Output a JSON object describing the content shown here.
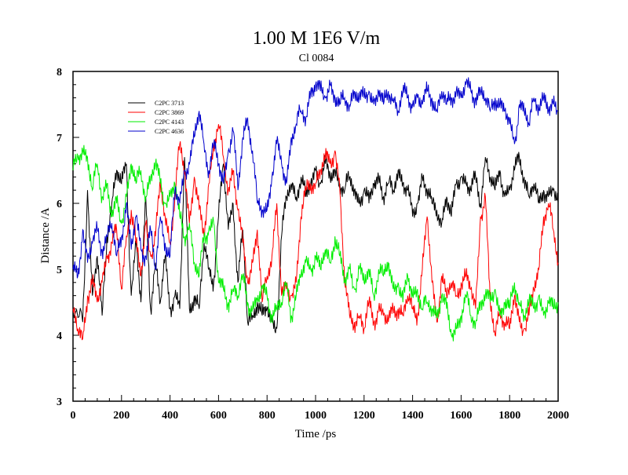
{
  "chart_data": {
    "type": "line",
    "title": "1.00 M 1E6 V/m",
    "subtitle": "Cl 0084",
    "xlabel": "Time /ps",
    "ylabel": "Distance /A",
    "xlim": [
      0,
      2000
    ],
    "ylim": [
      3,
      8
    ],
    "xticks": [
      0,
      200,
      400,
      600,
      800,
      1000,
      1200,
      1400,
      1600,
      1800,
      2000
    ],
    "xtick_labels": [
      "0",
      "200",
      "400",
      "600",
      "800",
      "1000",
      "1200",
      "1400",
      "1600",
      "1800",
      "2000"
    ],
    "yticks": [
      3,
      4,
      5,
      6,
      7,
      8
    ],
    "ytick_labels": [
      "3",
      "4",
      "5",
      "6",
      "7",
      "8"
    ],
    "grid": false,
    "legend_position": "top-left",
    "series": [
      {
        "name": "C2PC 3713",
        "color": "#000000",
        "x": [
          0,
          40,
          60,
          80,
          100,
          120,
          140,
          160,
          180,
          200,
          220,
          240,
          260,
          280,
          300,
          320,
          340,
          360,
          380,
          400,
          420,
          440,
          460,
          480,
          500,
          520,
          540,
          560,
          580,
          600,
          620,
          640,
          660,
          680,
          700,
          720,
          740,
          760,
          780,
          800,
          820,
          840,
          860,
          880,
          900,
          920,
          940,
          960,
          980,
          1000,
          1020,
          1040,
          1060,
          1080,
          1100,
          1120,
          1140,
          1160,
          1180,
          1200,
          1220,
          1240,
          1260,
          1280,
          1300,
          1320,
          1340,
          1360,
          1380,
          1400,
          1420,
          1440,
          1460,
          1480,
          1500,
          1520,
          1540,
          1560,
          1580,
          1600,
          1620,
          1640,
          1660,
          1680,
          1700,
          1720,
          1740,
          1760,
          1780,
          1800,
          1820,
          1840,
          1860,
          1880,
          1900,
          1920,
          1940,
          1960,
          1980,
          2000
        ],
        "y": [
          4.4,
          4.2,
          6.2,
          4.6,
          5.2,
          4.3,
          5.5,
          6.0,
          6.5,
          6.3,
          6.6,
          4.6,
          5.4,
          4.5,
          6.1,
          4.4,
          5.1,
          4.5,
          5.2,
          4.4,
          4.6,
          4.4,
          6.7,
          4.4,
          4.6,
          4.4,
          5.4,
          5.0,
          4.8,
          5.8,
          6.6,
          5.6,
          6.0,
          4.8,
          5.6,
          4.2,
          4.3,
          4.5,
          4.3,
          4.4,
          4.2,
          4.1,
          5.5,
          6.1,
          6.3,
          6.1,
          6.4,
          6.1,
          6.3,
          6.5,
          6.3,
          6.6,
          6.4,
          6.5,
          6.3,
          6.2,
          6.4,
          6.2,
          6.0,
          6.2,
          6.0,
          6.3,
          6.4,
          6.1,
          6.3,
          6.2,
          6.5,
          6.3,
          6.2,
          5.8,
          6.0,
          6.4,
          6.2,
          6.0,
          5.9,
          5.7,
          6.1,
          5.8,
          6.3,
          6.4,
          6.3,
          6.2,
          6.4,
          6.0,
          6.7,
          6.4,
          6.2,
          6.5,
          6.1,
          6.2,
          6.5,
          6.7,
          6.4,
          6.1,
          6.3,
          6.0,
          6.2,
          6.1,
          6.2,
          6.0
        ]
      },
      {
        "name": "C2PC 3869",
        "color": "#ff0000",
        "x": [
          0,
          20,
          40,
          60,
          80,
          100,
          120,
          140,
          160,
          180,
          200,
          220,
          240,
          260,
          280,
          300,
          320,
          340,
          360,
          380,
          400,
          420,
          440,
          460,
          480,
          500,
          520,
          540,
          560,
          580,
          600,
          620,
          640,
          660,
          680,
          700,
          720,
          740,
          760,
          780,
          800,
          820,
          840,
          860,
          880,
          900,
          920,
          940,
          960,
          980,
          1000,
          1020,
          1040,
          1060,
          1080,
          1100,
          1120,
          1140,
          1160,
          1180,
          1200,
          1220,
          1240,
          1260,
          1280,
          1300,
          1320,
          1340,
          1360,
          1380,
          1400,
          1420,
          1440,
          1460,
          1480,
          1500,
          1520,
          1540,
          1560,
          1580,
          1600,
          1620,
          1640,
          1660,
          1680,
          1700,
          1720,
          1740,
          1760,
          1780,
          1800,
          1820,
          1840,
          1860,
          1880,
          1900,
          1920,
          1940,
          1960,
          1980,
          2000
        ],
        "y": [
          4.4,
          4.1,
          3.95,
          4.6,
          4.8,
          4.5,
          4.8,
          5.2,
          5.4,
          5.6,
          4.7,
          5.5,
          5.9,
          5.4,
          4.9,
          5.7,
          5.2,
          5.5,
          6.3,
          5.8,
          5.4,
          6.1,
          6.9,
          6.5,
          5.7,
          6.4,
          5.9,
          5.5,
          6.3,
          6.9,
          7.2,
          6.7,
          6.2,
          6.5,
          5.9,
          5.4,
          4.8,
          5.1,
          5.6,
          4.5,
          4.9,
          5.2,
          6.0,
          4.6,
          4.7,
          4.6,
          4.8,
          5.8,
          6.2,
          6.3,
          6.3,
          6.5,
          6.7,
          6.6,
          6.8,
          6.2,
          4.8,
          4.3,
          4.2,
          4.3,
          4.1,
          4.5,
          4.2,
          4.4,
          4.3,
          4.2,
          4.4,
          4.4,
          4.3,
          4.6,
          4.4,
          4.3,
          5.0,
          5.8,
          4.8,
          4.2,
          4.9,
          4.6,
          4.8,
          4.6,
          4.8,
          4.9,
          4.7,
          4.4,
          5.8,
          6.1,
          4.5,
          4.0,
          4.4,
          4.2,
          4.1,
          4.6,
          4.2,
          4.1,
          4.3,
          4.7,
          5.0,
          5.8,
          6.0,
          5.6,
          5.1
        ]
      },
      {
        "name": "C2PC 4143",
        "color": "#00ee00",
        "x": [
          0,
          20,
          40,
          60,
          80,
          100,
          120,
          140,
          160,
          180,
          200,
          220,
          240,
          260,
          280,
          300,
          320,
          340,
          360,
          380,
          400,
          420,
          440,
          460,
          480,
          500,
          520,
          540,
          560,
          580,
          600,
          620,
          640,
          660,
          680,
          700,
          720,
          740,
          760,
          780,
          800,
          820,
          840,
          860,
          880,
          900,
          920,
          940,
          960,
          980,
          1000,
          1020,
          1040,
          1060,
          1080,
          1100,
          1120,
          1140,
          1160,
          1180,
          1200,
          1220,
          1240,
          1260,
          1280,
          1300,
          1320,
          1340,
          1360,
          1380,
          1400,
          1420,
          1440,
          1460,
          1480,
          1500,
          1520,
          1540,
          1560,
          1580,
          1600,
          1620,
          1640,
          1660,
          1680,
          1700,
          1720,
          1740,
          1760,
          1780,
          1800,
          1820,
          1840,
          1860,
          1880,
          1900,
          1920,
          1940,
          1960,
          1980,
          2000
        ],
        "y": [
          6.5,
          6.7,
          6.8,
          6.7,
          6.2,
          6.6,
          6.1,
          6.3,
          5.8,
          6.0,
          5.7,
          6.1,
          6.6,
          6.3,
          6.5,
          6.1,
          6.4,
          6.6,
          6.3,
          6.0,
          6.1,
          6.3,
          5.8,
          5.5,
          5.7,
          5.1,
          4.9,
          5.5,
          5.6,
          5.7,
          4.8,
          4.7,
          4.5,
          4.7,
          4.6,
          4.9,
          4.5,
          4.4,
          4.5,
          4.7,
          4.6,
          4.3,
          4.4,
          4.5,
          4.8,
          4.3,
          4.6,
          4.9,
          5.1,
          5.0,
          5.2,
          5.0,
          5.3,
          5.1,
          5.5,
          5.2,
          4.8,
          5.0,
          4.7,
          5.0,
          4.8,
          5.0,
          4.6,
          5.0,
          4.9,
          5.1,
          4.7,
          4.8,
          4.5,
          4.9,
          4.6,
          4.7,
          4.4,
          4.5,
          4.4,
          4.3,
          4.6,
          4.4,
          4.0,
          4.1,
          4.3,
          4.6,
          4.3,
          4.2,
          4.5,
          4.6,
          4.5,
          4.7,
          4.3,
          4.5,
          4.4,
          4.8,
          4.5,
          4.3,
          4.5,
          4.4,
          4.6,
          4.3,
          4.5,
          4.4,
          4.5
        ]
      },
      {
        "name": "C2PC 4636",
        "color": "#0000cc",
        "x": [
          0,
          20,
          40,
          60,
          80,
          100,
          120,
          140,
          160,
          180,
          200,
          220,
          240,
          260,
          280,
          300,
          320,
          340,
          360,
          380,
          400,
          420,
          440,
          460,
          480,
          500,
          520,
          540,
          560,
          580,
          600,
          620,
          640,
          660,
          680,
          700,
          720,
          740,
          760,
          780,
          800,
          820,
          840,
          860,
          880,
          900,
          920,
          940,
          960,
          980,
          1000,
          1020,
          1040,
          1060,
          1080,
          1100,
          1120,
          1140,
          1160,
          1180,
          1200,
          1220,
          1240,
          1260,
          1280,
          1300,
          1320,
          1340,
          1360,
          1380,
          1400,
          1420,
          1440,
          1460,
          1480,
          1500,
          1520,
          1540,
          1560,
          1580,
          1600,
          1620,
          1640,
          1660,
          1680,
          1700,
          1720,
          1740,
          1760,
          1780,
          1800,
          1820,
          1840,
          1860,
          1880,
          1900,
          1920,
          1940,
          1960,
          1980,
          2000
        ],
        "y": [
          5.0,
          4.9,
          5.6,
          5.1,
          5.4,
          5.6,
          5.3,
          5.5,
          5.7,
          5.2,
          5.5,
          6.0,
          5.3,
          5.8,
          5.3,
          5.2,
          5.6,
          5.0,
          5.8,
          5.4,
          5.2,
          6.2,
          6.0,
          6.5,
          6.6,
          7.0,
          7.4,
          6.9,
          6.5,
          6.9,
          6.6,
          6.3,
          6.8,
          7.1,
          6.2,
          7.0,
          7.3,
          6.8,
          6.0,
          5.9,
          5.9,
          6.4,
          6.9,
          6.6,
          6.3,
          7.0,
          7.2,
          7.4,
          7.3,
          7.7,
          7.8,
          7.7,
          7.6,
          7.8,
          7.6,
          7.5,
          7.6,
          7.5,
          7.7,
          7.6,
          7.6,
          7.7,
          7.5,
          7.7,
          7.5,
          7.7,
          7.6,
          7.4,
          7.7,
          7.6,
          7.5,
          7.6,
          7.5,
          7.7,
          7.6,
          7.4,
          7.7,
          7.5,
          7.6,
          7.7,
          7.6,
          7.8,
          7.7,
          7.6,
          7.7,
          7.6,
          7.4,
          7.6,
          7.5,
          7.4,
          7.2,
          6.9,
          7.5,
          7.4,
          7.2,
          7.6,
          7.5,
          7.6,
          7.4,
          7.5,
          7.4
        ]
      }
    ]
  }
}
